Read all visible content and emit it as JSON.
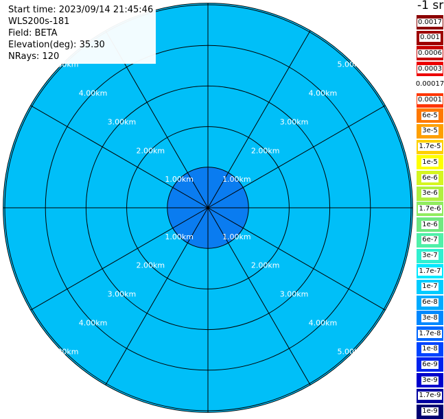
{
  "header": {
    "start_time": "Start time: 2023/09/14 21:45:46",
    "instrument": "WLS200s-181",
    "field": "Field: BETA",
    "elevation_label": "Elevation(deg):",
    "elevation_value": "35.30",
    "nrays": "NRays: 120"
  },
  "colorbar": {
    "unit_label": "-1 sr",
    "entries": [
      {
        "label": "0.0017",
        "color": "#8b0000"
      },
      {
        "label": "0.001",
        "color": "#9e0000"
      },
      {
        "label": "0.0006",
        "color": "#c80000"
      },
      {
        "label": "0.0003",
        "color": "#ec0000"
      },
      {
        "label": "0.00017",
        "color": "#ffffff"
      },
      {
        "label": "0.0001",
        "color": "#ff3500"
      },
      {
        "label": "6e-5",
        "color": "#ff7800"
      },
      {
        "label": "3e-5",
        "color": "#ffa000"
      },
      {
        "label": "1.7e-5",
        "color": "#ffd000"
      },
      {
        "label": "1e-5",
        "color": "#ffff00"
      },
      {
        "label": "6e-6",
        "color": "#d6f520"
      },
      {
        "label": "3e-6",
        "color": "#b0f040"
      },
      {
        "label": "1.7e-6",
        "color": "#90ec60"
      },
      {
        "label": "1e-6",
        "color": "#70e880"
      },
      {
        "label": "6e-7",
        "color": "#50f0a8"
      },
      {
        "label": "3e-7",
        "color": "#30f0d0"
      },
      {
        "label": "1.7e-7",
        "color": "#00e8ff"
      },
      {
        "label": "1e-7",
        "color": "#00ccff"
      },
      {
        "label": "6e-8",
        "color": "#00aaff"
      },
      {
        "label": "3e-8",
        "color": "#0088ff"
      },
      {
        "label": "1.7e-8",
        "color": "#0066ff"
      },
      {
        "label": "1e-8",
        "color": "#0044ff"
      },
      {
        "label": "6e-9",
        "color": "#0022ee"
      },
      {
        "label": "3e-9",
        "color": "#0000cc"
      },
      {
        "label": "1.7e-9",
        "color": "#0000a0"
      },
      {
        "label": "1e-9",
        "color": "#000070"
      }
    ]
  },
  "radar": {
    "range_rings_km": [
      1,
      2,
      3,
      4,
      5
    ],
    "ring_labels": [
      "1.00km",
      "2.00km",
      "3.00km",
      "4.00km",
      "5.00km"
    ],
    "spoke_angles_deg": [
      0,
      30,
      60,
      90,
      120,
      150,
      180,
      210,
      240,
      270,
      300,
      330
    ],
    "max_range_km": 5.04,
    "background_color": "#00bff8",
    "inner_zone_color": "#0a7cf0",
    "inner_zone_km": 1.0,
    "grid_color": "#000000",
    "label_color": "#ffffff"
  }
}
